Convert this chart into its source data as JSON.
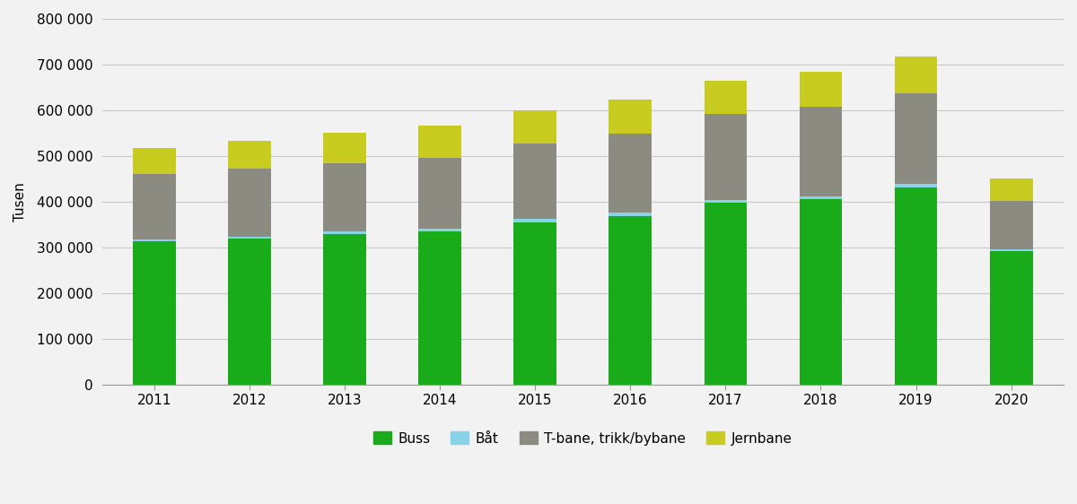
{
  "years": [
    2011,
    2012,
    2013,
    2014,
    2015,
    2016,
    2017,
    2018,
    2019,
    2020
  ],
  "buss": [
    313000,
    320000,
    330000,
    335000,
    355000,
    368000,
    397000,
    405000,
    432000,
    292000
  ],
  "bat": [
    5000,
    4000,
    5000,
    6000,
    7000,
    8000,
    6000,
    6000,
    7000,
    4000
  ],
  "tbane": [
    143000,
    148000,
    149000,
    155000,
    165000,
    172000,
    189000,
    196000,
    198000,
    106000
  ],
  "jernbane": [
    57000,
    62000,
    66000,
    70000,
    73000,
    75000,
    73000,
    78000,
    80000,
    48000
  ],
  "color_buss": "#1aab1a",
  "color_bat": "#87d3e8",
  "color_tbane": "#8b8b82",
  "color_jernbane": "#c8cc20",
  "ylabel": "Tusen",
  "ylim": [
    0,
    800000
  ],
  "yticks": [
    0,
    100000,
    200000,
    300000,
    400000,
    500000,
    600000,
    700000,
    800000
  ],
  "ytick_labels": [
    "0",
    "100 000",
    "200 000",
    "300 000",
    "400 000",
    "500 000",
    "600 000",
    "700 000",
    "800 000"
  ],
  "legend_labels": [
    "Buss",
    "Båt",
    "T-bane, trikk/bybane",
    "Jernbane"
  ],
  "background_color": "#f2f2f2",
  "plot_bg_color": "#f2f2f2",
  "grid_color": "#c8c8c8",
  "bar_width": 0.45,
  "bar_edge_color": "none"
}
